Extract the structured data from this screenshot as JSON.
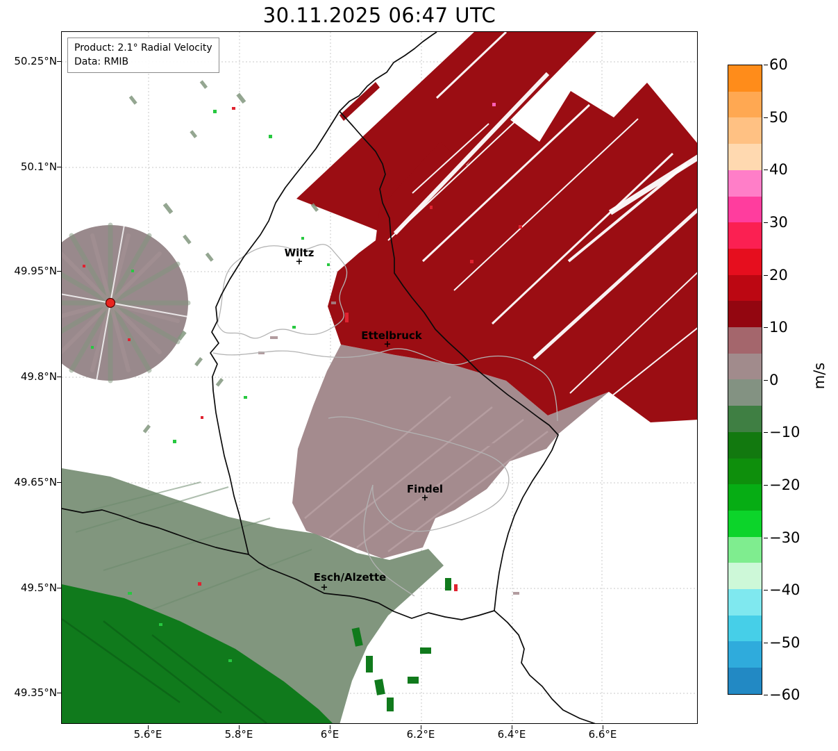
{
  "title": "30.11.2025 06:47 UTC",
  "product_box": {
    "line1": "Product: 2.1° Radial Velocity",
    "line2": "Data: RMIB"
  },
  "axes": {
    "y_ticks": [
      "50.25°N",
      "50.1°N",
      "49.95°N",
      "49.8°N",
      "49.65°N",
      "49.5°N",
      "49.35°N"
    ],
    "x_ticks": [
      "5.6°E",
      "5.8°E",
      "6°E",
      "6.2°E",
      "6.4°E",
      "6.6°E"
    ]
  },
  "colorbar": {
    "label": "m/s",
    "ticks": [
      "60",
      "50",
      "40",
      "30",
      "20",
      "10",
      "0",
      "−10",
      "−20",
      "−30",
      "−40",
      "−50",
      "−60"
    ],
    "band_colors": [
      "#ff8c1a",
      "#ffa852",
      "#ffc183",
      "#ffd9b0",
      "#ff7ec8",
      "#ff3d9e",
      "#fb2052",
      "#e60e1e",
      "#bc0712",
      "#930610",
      "#a4666c",
      "#a18b8c",
      "#839282",
      "#3f7f43",
      "#12790f",
      "#0e8f0c",
      "#06ad14",
      "#0cd42a",
      "#7fed8f",
      "#cdf8d8",
      "#7fe8ef",
      "#46cfe8",
      "#2fabdc",
      "#2289c4"
    ]
  },
  "cities": [
    {
      "name": "Wiltz"
    },
    {
      "name": "Ettelbruck"
    },
    {
      "name": "Findel"
    },
    {
      "name": "Esch/Alzette"
    }
  ],
  "colors": {
    "outbound": "#9b0d13",
    "outbound_bright": "#e02330",
    "zeroband": "#a48b8e",
    "zeroband_light": "#bda6a9",
    "inbound_weak": "#81967e",
    "inbound": "#107a1c",
    "inbound_bright": "#27c840",
    "clutter": "#99898c",
    "radar_dot": "#e8251f",
    "grid": "#c9c9c9",
    "admin": "#b3b3b3",
    "country_border": "#0a0a0a"
  },
  "chart_data": {
    "type": "heatmap",
    "title": "30.11.2025 06:47 UTC",
    "product": "2.1° Radial Velocity",
    "source": "RMIB",
    "units": "m/s",
    "value_range": [
      -60,
      60
    ],
    "colorbar_ticks": [
      60,
      50,
      40,
      30,
      20,
      10,
      0,
      -10,
      -20,
      -30,
      -40,
      -50,
      -60
    ],
    "x_axis": {
      "ticks_deg_e": [
        5.6,
        5.8,
        6.0,
        6.2,
        6.4,
        6.6
      ],
      "range_deg_e": [
        5.41,
        6.81
      ]
    },
    "y_axis": {
      "ticks_deg_n": [
        50.25,
        50.1,
        49.95,
        49.8,
        49.65,
        49.5,
        49.35
      ],
      "range_deg_n": [
        49.31,
        50.29
      ]
    },
    "grid": true,
    "radar_site": {
      "marker": "red-dot",
      "approx_lon_e": 5.51,
      "approx_lat_n": 49.91
    },
    "cities": [
      {
        "name": "Wiltz",
        "approx_lon_e": 5.93,
        "approx_lat_n": 49.96
      },
      {
        "name": "Ettelbruck",
        "approx_lon_e": 6.13,
        "approx_lat_n": 49.85
      },
      {
        "name": "Findel",
        "approx_lon_e": 6.21,
        "approx_lat_n": 49.63
      },
      {
        "name": "Esch/Alzette",
        "approx_lon_e": 5.99,
        "approx_lat_n": 49.5
      }
    ],
    "regions": [
      {
        "label": "outbound flow (away from radar)",
        "approx_velocity_ms": "+10 to +25",
        "color": "dark red",
        "location": "northeast half, streaks aligned SW-NE"
      },
      {
        "label": "zero-isodop transition band",
        "approx_velocity_ms": "-5 to +10",
        "color": "mauve / gray-green",
        "location": "central band through Ettelbruck and Findel"
      },
      {
        "label": "inbound flow (toward radar)",
        "approx_velocity_ms": "-10 to -25",
        "color": "dark green",
        "location": "southwest corner"
      },
      {
        "label": "ground clutter disc around radar site",
        "approx_velocity_ms": "-5 to +5",
        "color": "speckled gray",
        "location": "around radar site west of Wiltz"
      }
    ]
  }
}
